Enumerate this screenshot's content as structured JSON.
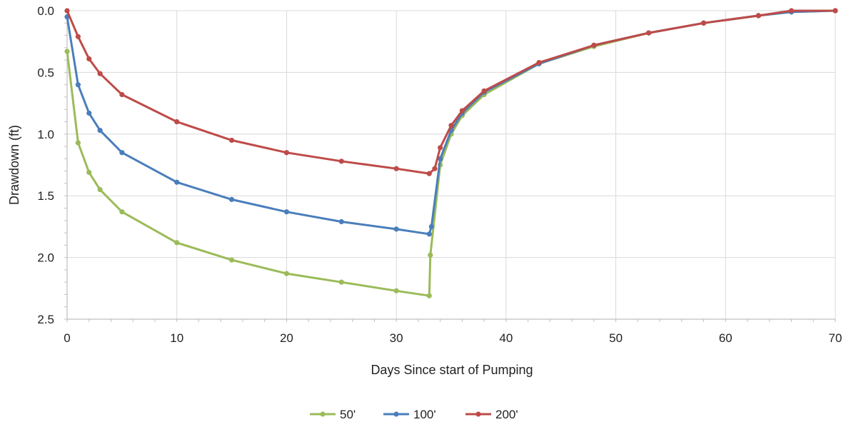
{
  "chart_data": {
    "type": "line",
    "title": "",
    "xlabel": "Days Since start of Pumping",
    "ylabel": "Drawdown (ft)",
    "xlim": [
      0,
      70
    ],
    "ylim": [
      0,
      2.5
    ],
    "y_inverted": true,
    "x_ticks": [
      "0",
      "10",
      "20",
      "30",
      "40",
      "50",
      "60",
      "70"
    ],
    "y_ticks": [
      "0.0",
      "0.5",
      "1.0",
      "1.5",
      "2.0",
      "2.5"
    ],
    "grid": true,
    "legend_position": "bottom",
    "series": [
      {
        "name": "50'",
        "color": "#9BBB59",
        "points": [
          [
            0,
            0.33
          ],
          [
            1,
            1.07
          ],
          [
            2,
            1.31
          ],
          [
            3,
            1.45
          ],
          [
            5,
            1.63
          ],
          [
            10,
            1.88
          ],
          [
            15,
            2.02
          ],
          [
            20,
            2.13
          ],
          [
            25,
            2.2
          ],
          [
            30,
            2.27
          ],
          [
            33,
            2.31
          ],
          [
            33.1,
            1.98
          ],
          [
            34,
            1.25
          ],
          [
            35,
            1.0
          ],
          [
            36,
            0.85
          ],
          [
            38,
            0.68
          ],
          [
            43,
            0.43
          ],
          [
            48,
            0.29
          ],
          [
            53,
            0.18
          ],
          [
            58,
            0.1
          ],
          [
            63,
            0.04
          ],
          [
            66,
            0.01
          ],
          [
            70,
            0.0
          ]
        ]
      },
      {
        "name": "100'",
        "color": "#4A7EBB",
        "points": [
          [
            0,
            0.05
          ],
          [
            1,
            0.6
          ],
          [
            2,
            0.83
          ],
          [
            3,
            0.97
          ],
          [
            5,
            1.15
          ],
          [
            10,
            1.39
          ],
          [
            15,
            1.53
          ],
          [
            20,
            1.63
          ],
          [
            25,
            1.71
          ],
          [
            30,
            1.77
          ],
          [
            33,
            1.81
          ],
          [
            33.2,
            1.75
          ],
          [
            34,
            1.2
          ],
          [
            35,
            0.97
          ],
          [
            36,
            0.83
          ],
          [
            38,
            0.66
          ],
          [
            43,
            0.43
          ],
          [
            48,
            0.28
          ],
          [
            53,
            0.18
          ],
          [
            58,
            0.1
          ],
          [
            63,
            0.04
          ],
          [
            66,
            0.01
          ],
          [
            70,
            0.0
          ]
        ]
      },
      {
        "name": "200'",
        "color": "#BE4B48",
        "points": [
          [
            0,
            0.0
          ],
          [
            1,
            0.21
          ],
          [
            2,
            0.39
          ],
          [
            3,
            0.51
          ],
          [
            5,
            0.68
          ],
          [
            10,
            0.9
          ],
          [
            15,
            1.05
          ],
          [
            20,
            1.15
          ],
          [
            25,
            1.22
          ],
          [
            30,
            1.28
          ],
          [
            33,
            1.32
          ],
          [
            33.5,
            1.28
          ],
          [
            34,
            1.11
          ],
          [
            35,
            0.93
          ],
          [
            36,
            0.81
          ],
          [
            38,
            0.65
          ],
          [
            43,
            0.42
          ],
          [
            48,
            0.28
          ],
          [
            53,
            0.18
          ],
          [
            58,
            0.1
          ],
          [
            63,
            0.04
          ],
          [
            66,
            0.0
          ],
          [
            70,
            0.0
          ]
        ]
      }
    ]
  }
}
